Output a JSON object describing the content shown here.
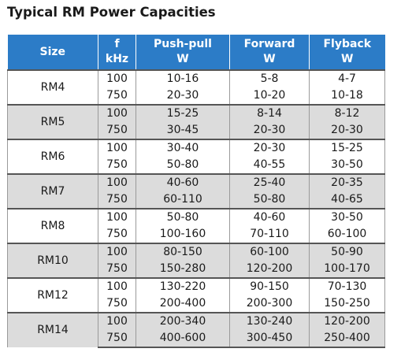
{
  "title": "Typical RM Power Capacities",
  "headers": {
    "size": "Size",
    "f_line1": "f",
    "f_line2": "kHz",
    "pushpull_line1": "Push-pull",
    "pushpull_line2": "W",
    "forward_line1": "Forward",
    "forward_line2": "W",
    "flyback_line1": "Flyback",
    "flyback_line2": "W"
  },
  "rows": [
    {
      "size": "RM4",
      "f": [
        "100",
        "750"
      ],
      "pushpull": [
        "10-16",
        "20-30"
      ],
      "forward": [
        "5-8",
        "10-20"
      ],
      "flyback": [
        "4-7",
        "10-18"
      ]
    },
    {
      "size": "RM5",
      "f": [
        "100",
        "750"
      ],
      "pushpull": [
        "15-25",
        "30-45"
      ],
      "forward": [
        "8-14",
        "20-30"
      ],
      "flyback": [
        "8-12",
        "20-30"
      ]
    },
    {
      "size": "RM6",
      "f": [
        "100",
        "750"
      ],
      "pushpull": [
        "30-40",
        "50-80"
      ],
      "forward": [
        "20-30",
        "40-55"
      ],
      "flyback": [
        "15-25",
        "30-50"
      ]
    },
    {
      "size": "RM7",
      "f": [
        "100",
        "750"
      ],
      "pushpull": [
        "40-60",
        "60-110"
      ],
      "forward": [
        "25-40",
        "50-80"
      ],
      "flyback": [
        "20-35",
        "40-65"
      ]
    },
    {
      "size": "RM8",
      "f": [
        "100",
        "750"
      ],
      "pushpull": [
        "50-80",
        "100-160"
      ],
      "forward": [
        "40-60",
        "70-110"
      ],
      "flyback": [
        "30-50",
        "60-100"
      ]
    },
    {
      "size": "RM10",
      "f": [
        "100",
        "750"
      ],
      "pushpull": [
        "80-150",
        "150-280"
      ],
      "forward": [
        "60-100",
        "120-200"
      ],
      "flyback": [
        "50-90",
        "100-170"
      ]
    },
    {
      "size": "RM12",
      "f": [
        "100",
        "750"
      ],
      "pushpull": [
        "130-220",
        "200-400"
      ],
      "forward": [
        "90-150",
        "200-300"
      ],
      "flyback": [
        "70-130",
        "150-250"
      ]
    },
    {
      "size": "RM14",
      "f": [
        "100",
        "750"
      ],
      "pushpull": [
        "200-340",
        "400-600"
      ],
      "forward": [
        "130-240",
        "300-450"
      ],
      "flyback": [
        "120-200",
        "250-400"
      ]
    }
  ],
  "colors": {
    "header_bg": "#2c7cc7",
    "header_text": "#ffffff",
    "shaded_row": "#dcdcdc",
    "plain_row": "#ffffff"
  }
}
